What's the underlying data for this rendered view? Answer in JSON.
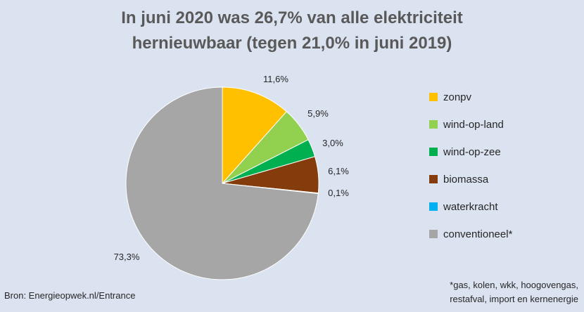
{
  "chart_data": {
    "type": "pie",
    "title": [
      "In juni 2020 was 26,7% van alle elektriciteit",
      "hernieuwbaar (tegen 21,0% in juni 2019)"
    ],
    "slices": [
      {
        "name": "zonpv",
        "value": 11.6,
        "label": "11,6%",
        "color": "#ffc000"
      },
      {
        "name": "wind-op-land",
        "value": 5.9,
        "label": "5,9%",
        "color": "#92d050"
      },
      {
        "name": "wind-op-zee",
        "value": 3.0,
        "label": "3,0%",
        "color": "#00b050"
      },
      {
        "name": "biomassa",
        "value": 6.1,
        "label": "6,1%",
        "color": "#843c0c"
      },
      {
        "name": "waterkracht",
        "value": 0.1,
        "label": "0,1%",
        "color": "#00b0f0"
      },
      {
        "name": "conventioneel*",
        "value": 73.3,
        "label": "73,3%",
        "color": "#a6a6a6"
      }
    ],
    "legend_position": "right",
    "source": "Bron: Energieopwek.nl/Entrance",
    "footnote": [
      "*gas, kolen, wkk, hoogovengas,",
      "restafval, import en kernenergie"
    ]
  }
}
